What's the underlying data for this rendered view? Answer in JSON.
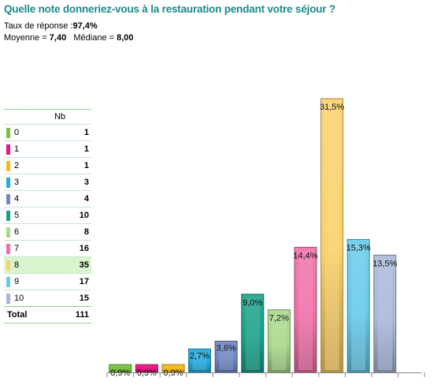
{
  "title": "Quelle note donneriez-vous à la restauration pendant votre séjour ?",
  "stats": {
    "response_rate_label": "Taux de réponse :",
    "response_rate_value": "97,4%",
    "mean_label": "Moyenne = ",
    "mean_value": "7,40",
    "median_label": "Médiane = ",
    "median_value": "8,00"
  },
  "table": {
    "col_header": "Nb",
    "rows": [
      {
        "label": "0",
        "count": "1"
      },
      {
        "label": "1",
        "count": "1"
      },
      {
        "label": "2",
        "count": "1"
      },
      {
        "label": "3",
        "count": "3"
      },
      {
        "label": "4",
        "count": "4"
      },
      {
        "label": "5",
        "count": "10"
      },
      {
        "label": "6",
        "count": "8"
      },
      {
        "label": "7",
        "count": "16"
      },
      {
        "label": "8",
        "count": "35"
      },
      {
        "label": "9",
        "count": "17"
      },
      {
        "label": "10",
        "count": "15"
      }
    ],
    "highlighted_row": 8,
    "total_label": "Total",
    "total_value": "111"
  },
  "chart_data": {
    "type": "bar",
    "categories": [
      "0",
      "1",
      "2",
      "3",
      "4",
      "5",
      "6",
      "7",
      "8",
      "9",
      "10"
    ],
    "values": [
      0.9,
      0.9,
      0.9,
      2.7,
      3.6,
      9.0,
      7.2,
      14.4,
      31.5,
      15.3,
      13.5
    ],
    "data_labels": [
      "0,9%",
      "0,9%",
      "0,9%",
      "2,7%",
      "3,6%",
      "9,0%",
      "7,2%",
      "14,4%",
      "31,5%",
      "15,3%",
      "13,5%"
    ],
    "colors": [
      "#7ac142",
      "#e8157f",
      "#f7b81e",
      "#22aadd",
      "#6f86c0",
      "#1aa088",
      "#a9d88a",
      "#ef6fa8",
      "#fbd06a",
      "#67c9ea",
      "#a9b8d8"
    ],
    "ylim": [
      0,
      33
    ],
    "grid": false
  }
}
